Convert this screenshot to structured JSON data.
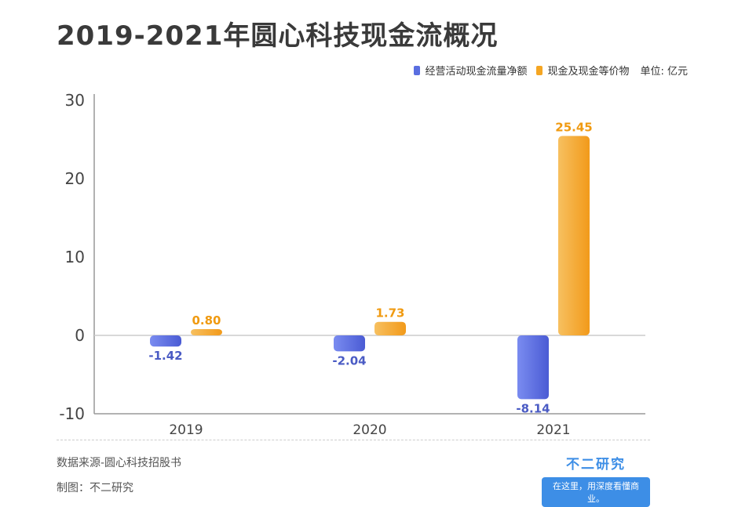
{
  "title": "2019-2021年圆心科技现金流概况",
  "legend": {
    "unit": "单位: 亿元"
  },
  "colors": {
    "series1": "#5a6ee0",
    "series2": "#f5a623",
    "label1": "#4a5bc4",
    "label2": "#f09a10",
    "axis": "#999999",
    "zero_line": "#cccccc"
  },
  "chart_data": {
    "type": "bar",
    "categories": [
      "2019",
      "2020",
      "2021"
    ],
    "series": [
      {
        "name": "经营活动现金流量净额",
        "values": [
          -1.42,
          -2.04,
          -8.14
        ],
        "labels": [
          "-1.42",
          "-2.04",
          "-8.14"
        ]
      },
      {
        "name": "现金及现金等价物",
        "values": [
          0.8,
          1.73,
          25.45
        ],
        "labels": [
          "0.80",
          "1.73",
          "25.45"
        ]
      }
    ],
    "ylim": [
      -10,
      30
    ],
    "yticks": [
      30,
      20,
      10,
      0,
      -10
    ],
    "xlabel": "",
    "ylabel": "",
    "grid": false,
    "legend_position": "top-right"
  },
  "footer": {
    "source": "数据来源-圆心科技招股书",
    "maker": "制图：不二研究",
    "brand_name": "不二研究",
    "brand_slogan": "在这里，用深度看懂商业。"
  }
}
